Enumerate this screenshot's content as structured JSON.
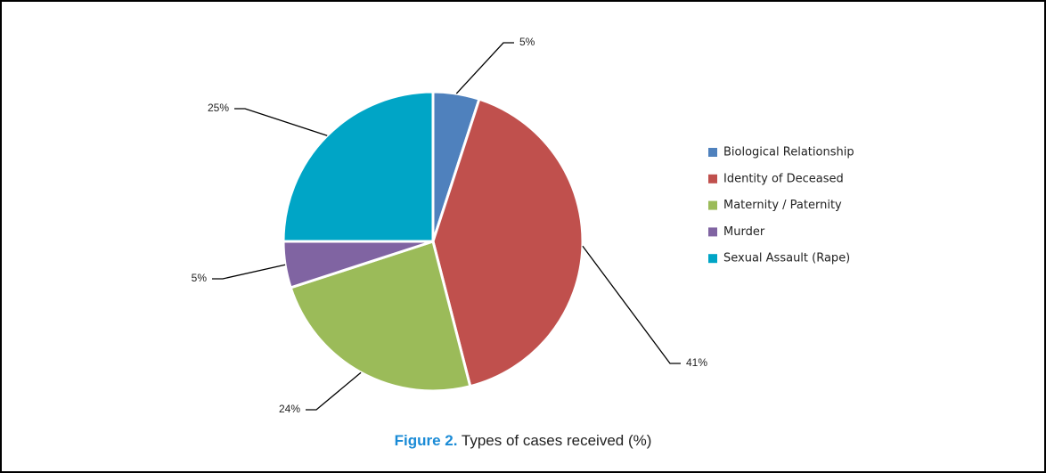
{
  "chart_data": {
    "type": "pie",
    "figure_label": "Figure 2.",
    "title": "Types of cases received (%)",
    "categories": [
      "Biological Relationship",
      "Identity of Deceased",
      "Maternity / Paternity",
      "Murder",
      "Sexual Assault (Rape)"
    ],
    "values": [
      5,
      41,
      24,
      5,
      25
    ],
    "value_labels": [
      "5%",
      "41%",
      "24%",
      "5%",
      "25%"
    ],
    "colors": [
      "#4f81bd",
      "#c0504d",
      "#9bbb59",
      "#8064a2",
      "#00a5c6"
    ],
    "legend": "right"
  }
}
